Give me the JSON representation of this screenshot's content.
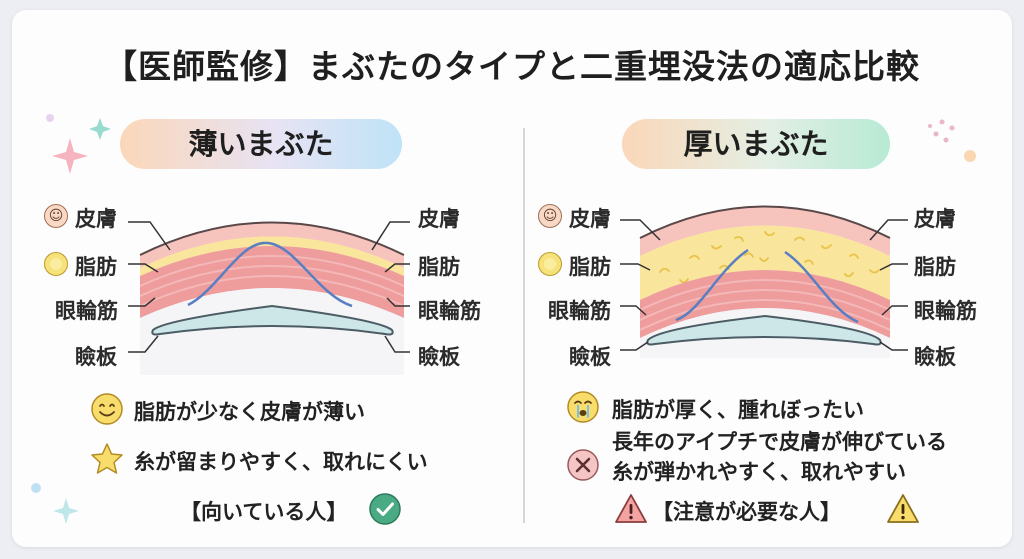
{
  "title": "【医師監修】まぶたのタイプと二重埋没法の適応比較",
  "thin": {
    "heading": "薄いまぶた",
    "layers": {
      "skin": "皮膚",
      "fat": "脂肪",
      "muscle": "眼輪筋",
      "tarsus": "瞼板"
    },
    "points": [
      {
        "icon": "smile-icon",
        "text": "脂肪が少なく皮膚が薄い"
      },
      {
        "icon": "star-icon",
        "text": "糸が留まりやすく、取れにくい"
      }
    ],
    "verdict": "【向いている人】",
    "verdict_icon": "check-circle-icon"
  },
  "thick": {
    "heading": "厚いまぶた",
    "layers": {
      "skin": "皮膚",
      "fat": "脂肪",
      "muscle": "眼輪筋",
      "tarsus": "瞼板"
    },
    "points": [
      {
        "icon": "crying-face-icon",
        "text": "脂肪が厚く、腫れぼったい"
      },
      {
        "icon": "cross-circle-icon",
        "text": "長年のアイプチで皮膚が伸びている"
      },
      {
        "icon": "cross-circle-icon",
        "text": "糸が弾かれやすく、取れやすい"
      }
    ],
    "verdict": "【注意が必要な人】",
    "verdict_icon": "warning-icon"
  },
  "colors": {
    "skin": "#f6c3bd",
    "fat": "#f9e59b",
    "muscle": "#ee9c9c",
    "tarsus": "#cde6e8",
    "thread": "#5a7ec2",
    "check": "#4aaa83",
    "warning": "#e26a6a"
  }
}
